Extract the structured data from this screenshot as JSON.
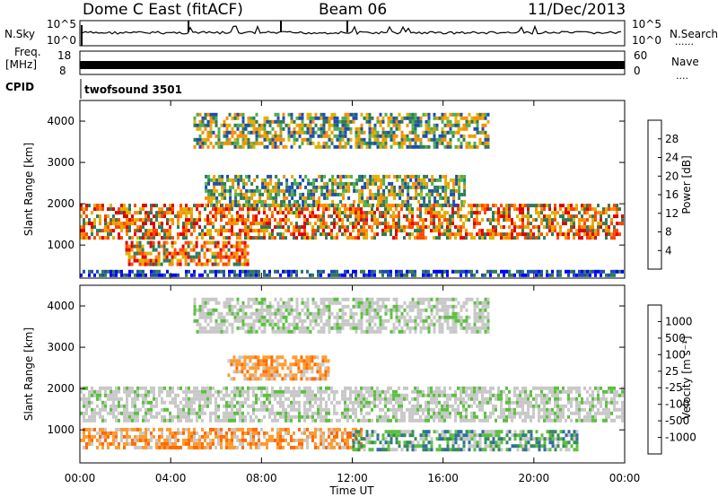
{
  "header": {
    "station": "Dome C East (fitACF)",
    "beam": "Beam 06",
    "date": "11/Dec/2013"
  },
  "top_panels": {
    "nsky_label": "N.Sky",
    "nsky_ticks": [
      "10^5",
      "10^0"
    ],
    "nsearch_label": "N.Search",
    "nsearch_ticks": [
      "10^5",
      "10^0"
    ],
    "freq_label": "Freq.",
    "freq_unit": "[MHz]",
    "freq_ticks": [
      "18",
      "8"
    ],
    "nave_label": "Nave",
    "nave_ticks": [
      "60",
      "0"
    ],
    "cpid_label": "CPID",
    "cpid_value": "twofsound 3501",
    "dots": "......",
    "dots_short": "...."
  },
  "chart_data": [
    {
      "type": "heatmap",
      "name_key": "power",
      "ylabel": "Slant Range [km]",
      "xlabel": "",
      "colorbar_label": "Power [dB]",
      "ylim": [
        200,
        4500
      ],
      "xlim": [
        0,
        24
      ],
      "yticks": [
        1000,
        2000,
        3000,
        4000
      ],
      "colorbar_ticks": [
        "28",
        "24",
        "20",
        "16",
        "12",
        "8",
        "4"
      ],
      "colorbar_colors": [
        "#0000ff",
        "#1e4db0",
        "#2f7a5a",
        "#4caf50",
        "#e0b000",
        "#ff8c00",
        "#ff4500",
        "#e00000"
      ],
      "bands": [
        {
          "x": [
            0,
            24
          ],
          "y": [
            1100,
            2000
          ],
          "level": "high"
        },
        {
          "x": [
            2,
            7.5
          ],
          "y": [
            500,
            1100
          ],
          "level": "high"
        },
        {
          "x": [
            5.5,
            17
          ],
          "y": [
            1900,
            2700
          ],
          "level": "mid"
        },
        {
          "x": [
            5,
            18
          ],
          "y": [
            3300,
            4200
          ],
          "level": "mid"
        },
        {
          "x": [
            0,
            24
          ],
          "y": [
            250,
            400
          ],
          "level": "low"
        }
      ]
    },
    {
      "type": "heatmap",
      "name_key": "velocity",
      "ylabel": "Slant Range [km]",
      "xlabel": "Time UT",
      "colorbar_label": "Velocity [m s⁻¹]",
      "ylim": [
        200,
        4500
      ],
      "xlim": [
        0,
        24
      ],
      "yticks": [
        1000,
        2000,
        3000,
        4000
      ],
      "xticks": [
        "00:00",
        "04:00",
        "08:00",
        "12:00",
        "16:00",
        "20:00",
        "00:00"
      ],
      "colorbar_ticks": [
        "1000",
        "500",
        "100",
        "25",
        "-25",
        "-100",
        "-500",
        "-1000"
      ],
      "colorbar_colors": [
        "#1e3fb0",
        "#2f6ea0",
        "#3a8a5a",
        "#5cc040",
        "#c8c8c8",
        "#c8c8c8",
        "#ff9a30",
        "#ff6a00",
        "#e00000"
      ],
      "bands": [
        {
          "x": [
            0,
            24
          ],
          "y": [
            1150,
            2050
          ],
          "level": "gray"
        },
        {
          "x": [
            0,
            12.5
          ],
          "y": [
            550,
            1050
          ],
          "level": "orange"
        },
        {
          "x": [
            12,
            22
          ],
          "y": [
            450,
            1000
          ],
          "level": "green"
        },
        {
          "x": [
            5,
            18
          ],
          "y": [
            3300,
            4200
          ],
          "level": "gray"
        },
        {
          "x": [
            6.5,
            11
          ],
          "y": [
            2200,
            2800
          ],
          "level": "orange"
        }
      ]
    }
  ]
}
